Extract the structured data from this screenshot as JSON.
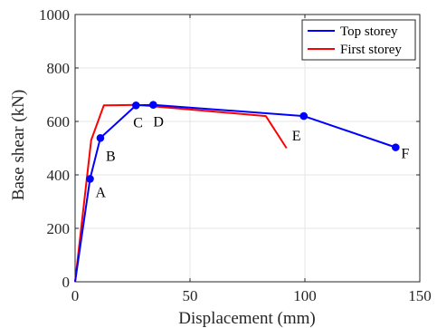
{
  "chart_data": {
    "type": "line",
    "xlabel": "Displacement (mm)",
    "ylabel": "Base shear (kN)",
    "xlim": [
      0,
      150
    ],
    "ylim": [
      0,
      1000
    ],
    "xticks": [
      0,
      50,
      100,
      150
    ],
    "yticks": [
      0,
      200,
      400,
      600,
      800,
      1000
    ],
    "x_tick_labels": [
      "0",
      "50",
      "100",
      "150"
    ],
    "y_tick_labels": [
      "0",
      "200",
      "400",
      "600",
      "800",
      "1000"
    ],
    "grid": true,
    "legend_position": "top-right",
    "series": [
      {
        "name": "Top storey",
        "color": "#0000ff",
        "markers": true,
        "x": [
          0,
          6.5,
          11,
          26.5,
          34,
          99.5,
          139.5
        ],
        "y": [
          0,
          385,
          538,
          660,
          662,
          620,
          503
        ]
      },
      {
        "name": "First storey",
        "color": "#ff0000",
        "markers": false,
        "x": [
          0,
          7,
          12.5,
          27,
          83,
          92
        ],
        "y": [
          0,
          530,
          660,
          662,
          620,
          500
        ]
      }
    ],
    "annotations": [
      {
        "text": "A",
        "x": 6.5,
        "y": 385
      },
      {
        "text": "B",
        "x": 11,
        "y": 538
      },
      {
        "text": "C",
        "x": 26.5,
        "y": 660
      },
      {
        "text": "D",
        "x": 34,
        "y": 662
      },
      {
        "text": "E",
        "x": 99.5,
        "y": 620
      },
      {
        "text": "F",
        "x": 139.5,
        "y": 503
      }
    ]
  }
}
